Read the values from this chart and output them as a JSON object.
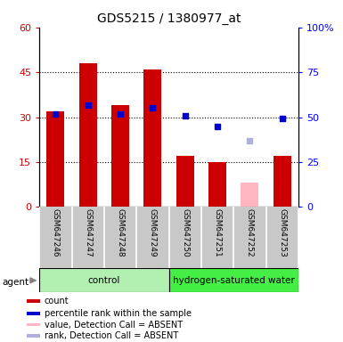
{
  "title": "GDS5215 / 1380977_at",
  "samples": [
    "GSM647246",
    "GSM647247",
    "GSM647248",
    "GSM647249",
    "GSM647250",
    "GSM647251",
    "GSM647252",
    "GSM647253"
  ],
  "red_bars": [
    32,
    48,
    34,
    46,
    17,
    15,
    0,
    17
  ],
  "pink_bars": [
    0,
    0,
    0,
    0,
    0,
    0,
    8,
    0
  ],
  "blue_dots_left": [
    31,
    34,
    31,
    33,
    30.5,
    27,
    0,
    29.5
  ],
  "lavender_dots_left": [
    0,
    0,
    0,
    0,
    0,
    0,
    22,
    0
  ],
  "blue_dot_present": [
    true,
    true,
    true,
    true,
    true,
    true,
    false,
    true
  ],
  "lavender_dot_present": [
    false,
    false,
    false,
    false,
    false,
    false,
    true,
    false
  ],
  "ylim_left": [
    0,
    60
  ],
  "ylim_right": [
    0,
    100
  ],
  "yticks_left": [
    0,
    15,
    30,
    45,
    60
  ],
  "ytick_labels_left": [
    "0",
    "15",
    "30",
    "45",
    "60"
  ],
  "yticks_right": [
    0,
    25,
    50,
    75,
    100
  ],
  "ytick_labels_right": [
    "0",
    "25",
    "50",
    "75",
    "100%"
  ],
  "group_labels": [
    "control",
    "hydrogen-saturated water"
  ],
  "group_ranges": [
    [
      0,
      4
    ],
    [
      4,
      8
    ]
  ],
  "group_color_light": "#b2f0b2",
  "group_color_dark": "#44ee44",
  "agent_label": "agent",
  "legend_items": [
    {
      "label": "count",
      "color": "#cc0000"
    },
    {
      "label": "percentile rank within the sample",
      "color": "#0000cc"
    },
    {
      "label": "value, Detection Call = ABSENT",
      "color": "#ffb6c1"
    },
    {
      "label": "rank, Detection Call = ABSENT",
      "color": "#b0b0e0"
    }
  ],
  "bar_width": 0.55,
  "red_color": "#cc0000",
  "pink_color": "#ffb6c1",
  "blue_color": "#0000cc",
  "lavender_color": "#b0b0e0",
  "bg_color": "#ffffff",
  "label_bg": "#c8c8c8",
  "grid_dotted_color": "#000000"
}
